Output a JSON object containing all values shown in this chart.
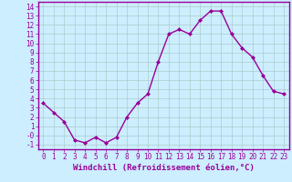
{
  "x": [
    0,
    1,
    2,
    3,
    4,
    5,
    6,
    7,
    8,
    9,
    10,
    11,
    12,
    13,
    14,
    15,
    16,
    17,
    18,
    19,
    20,
    21,
    22,
    23
  ],
  "y": [
    3.5,
    2.5,
    1.5,
    -0.5,
    -0.8,
    -0.2,
    -0.8,
    -0.2,
    2.0,
    3.5,
    4.5,
    8.0,
    11.0,
    11.5,
    11.0,
    12.5,
    13.5,
    13.5,
    11.0,
    9.5,
    8.5,
    6.5,
    4.8,
    4.5
  ],
  "line_color": "#990099",
  "marker": "D",
  "markersize": 2.0,
  "linewidth": 1.0,
  "bg_color": "#cceeff",
  "grid_color": "#aacccc",
  "xlabel": "Windchill (Refroidissement éolien,°C)",
  "xlabel_color": "#990099",
  "xlabel_fontsize": 6.5,
  "tick_color": "#990099",
  "tick_fontsize": 5.5,
  "xlim": [
    -0.5,
    23.5
  ],
  "ylim": [
    -1.5,
    14.5
  ],
  "yticks": [
    -1,
    0,
    1,
    2,
    3,
    4,
    5,
    6,
    7,
    8,
    9,
    10,
    11,
    12,
    13,
    14
  ],
  "xticks": [
    0,
    1,
    2,
    3,
    4,
    5,
    6,
    7,
    8,
    9,
    10,
    11,
    12,
    13,
    14,
    15,
    16,
    17,
    18,
    19,
    20,
    21,
    22,
    23
  ]
}
